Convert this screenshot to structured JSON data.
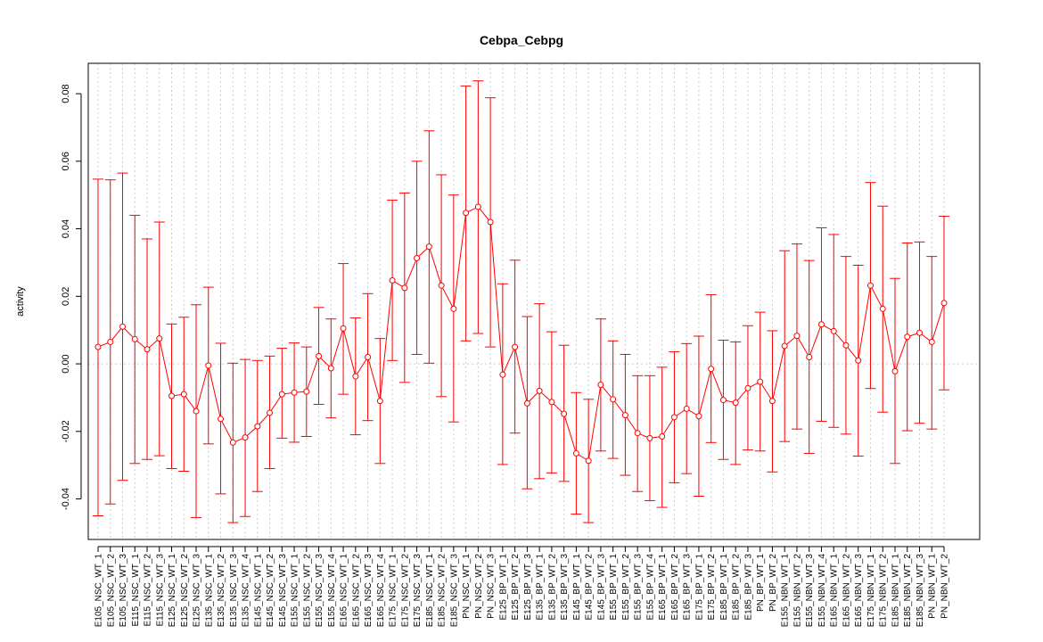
{
  "chart_data": {
    "type": "line",
    "title": "Cebpa_Cebpg",
    "xlabel": "",
    "ylabel": "activity",
    "ylim": [
      -0.052,
      0.089
    ],
    "yticks": [
      -0.04,
      -0.02,
      0.0,
      0.02,
      0.04,
      0.06,
      0.08
    ],
    "ytick_labels": [
      "-0.04",
      "-0.02",
      "0.00",
      "0.02",
      "0.04",
      "0.06",
      "0.08"
    ],
    "grid": true,
    "reference_line": 0.0,
    "series_color": "#ff0000",
    "grid_color": "#cccccc",
    "categories": [
      "E105_NSC_WT_1",
      "E105_NSC_WT_2",
      "E105_NSC_WT_3",
      "E115_NSC_WT_1",
      "E115_NSC_WT_2",
      "E115_NSC_WT_3",
      "E125_NSC_WT_1",
      "E125_NSC_WT_2",
      "E125_NSC_WT_3",
      "E135_NSC_WT_1",
      "E135_NSC_WT_2",
      "E135_NSC_WT_3",
      "E135_NSC_WT_4",
      "E145_NSC_WT_1",
      "E145_NSC_WT_2",
      "E145_NSC_WT_3",
      "E155_NSC_WT_1",
      "E155_NSC_WT_2",
      "E155_NSC_WT_3",
      "E155_NSC_WT_4",
      "E165_NSC_WT_1",
      "E165_NSC_WT_2",
      "E165_NSC_WT_3",
      "E165_NSC_WT_4",
      "E175_NSC_WT_1",
      "E175_NSC_WT_2",
      "E175_NSC_WT_3",
      "E185_NSC_WT_1",
      "E185_NSC_WT_2",
      "E185_NSC_WT_3",
      "PN_NSC_WT_1",
      "PN_NSC_WT_2",
      "PN_NSC_WT_3",
      "E125_BP_WT_1",
      "E125_BP_WT_2",
      "E125_BP_WT_3",
      "E135_BP_WT_1",
      "E135_BP_WT_2",
      "E135_BP_WT_3",
      "E145_BP_WT_1",
      "E145_BP_WT_2",
      "E145_BP_WT_3",
      "E155_BP_WT_1",
      "E155_BP_WT_2",
      "E155_BP_WT_3",
      "E155_BP_WT_4",
      "E165_BP_WT_1",
      "E165_BP_WT_2",
      "E165_BP_WT_3",
      "E175_BP_WT_1",
      "E175_BP_WT_2",
      "E185_BP_WT_1",
      "E185_BP_WT_2",
      "E185_BP_WT_3",
      "PN_BP_WT_1",
      "PN_BP_WT_2",
      "E155_NBN_WT_1",
      "E155_NBN_WT_2",
      "E155_NBN_WT_3",
      "E155_NBN_WT_4",
      "E165_NBN_WT_1",
      "E165_NBN_WT_2",
      "E165_NBN_WT_3",
      "E175_NBN_WT_1",
      "E175_NBN_WT_2",
      "E185_NBN_WT_1",
      "E185_NBN_WT_2",
      "E185_NBN_WT_3",
      "PN_NBN_WT_1",
      "PN_NBN_WT_2"
    ],
    "values": [
      0.005,
      0.0065,
      0.011,
      0.0073,
      0.0043,
      0.0075,
      -0.0095,
      -0.009,
      -0.014,
      -0.0005,
      -0.0163,
      -0.0233,
      -0.0218,
      -0.0185,
      -0.0145,
      -0.009,
      -0.0085,
      -0.0082,
      0.0023,
      -0.0013,
      0.0105,
      -0.0037,
      0.002,
      -0.011,
      0.0247,
      0.0225,
      0.0313,
      0.0347,
      0.0232,
      0.0163,
      0.0447,
      0.0465,
      0.042,
      -0.0032,
      0.005,
      -0.0117,
      -0.008,
      -0.0113,
      -0.0148,
      -0.0265,
      -0.0287,
      -0.0062,
      -0.0105,
      -0.0152,
      -0.0205,
      -0.022,
      -0.0215,
      -0.0158,
      -0.0133,
      -0.0155,
      -0.0015,
      -0.0107,
      -0.0115,
      -0.0072,
      -0.0053,
      -0.011,
      0.0053,
      0.0083,
      0.002,
      0.0117,
      0.0097,
      0.0055,
      0.001,
      0.0232,
      0.0163,
      -0.0022,
      0.008,
      0.0092,
      0.0065,
      0.018
    ],
    "error_upper": [
      0.0547,
      0.0545,
      0.0565,
      0.044,
      0.037,
      0.042,
      0.0118,
      0.0138,
      0.0175,
      0.0227,
      0.0061,
      0.0002,
      0.0013,
      0.001,
      0.0023,
      0.0046,
      0.0062,
      0.005,
      0.0167,
      0.0133,
      0.0297,
      0.0136,
      0.0208,
      0.0075,
      0.0485,
      0.0506,
      0.06,
      0.069,
      0.056,
      0.05,
      0.0823,
      0.0838,
      0.0788,
      0.0237,
      0.0307,
      0.014,
      0.0178,
      0.0095,
      0.0055,
      -0.0085,
      -0.0105,
      0.0133,
      0.0068,
      0.0028,
      -0.0035,
      -0.0035,
      -0.001,
      0.0036,
      0.006,
      0.0082,
      0.0205,
      0.007,
      0.0065,
      0.0113,
      0.0153,
      0.0098,
      0.0335,
      0.0355,
      0.0306,
      0.0403,
      0.0383,
      0.0318,
      0.0292,
      0.0537,
      0.0467,
      0.0253,
      0.0358,
      0.0361,
      0.0318,
      0.0437
    ],
    "error_lower": [
      -0.045,
      -0.0415,
      -0.0345,
      -0.0295,
      -0.0283,
      -0.0272,
      -0.031,
      -0.0318,
      -0.0455,
      -0.0237,
      -0.0385,
      -0.047,
      -0.0452,
      -0.0378,
      -0.031,
      -0.022,
      -0.0232,
      -0.0215,
      -0.012,
      -0.016,
      -0.009,
      -0.021,
      -0.0168,
      -0.0295,
      0.001,
      -0.0055,
      0.0028,
      0.0002,
      -0.0097,
      -0.0172,
      0.0068,
      0.009,
      0.005,
      -0.0298,
      -0.0205,
      -0.037,
      -0.034,
      -0.0323,
      -0.0348,
      -0.0445,
      -0.047,
      -0.0258,
      -0.028,
      -0.033,
      -0.0378,
      -0.0405,
      -0.0425,
      -0.0352,
      -0.0325,
      -0.0392,
      -0.0233,
      -0.0283,
      -0.0298,
      -0.0255,
      -0.0258,
      -0.032,
      -0.023,
      -0.0193,
      -0.0265,
      -0.017,
      -0.0188,
      -0.0208,
      -0.0273,
      -0.0073,
      -0.0143,
      -0.0295,
      -0.0198,
      -0.0176,
      -0.0193,
      -0.0077
    ]
  }
}
